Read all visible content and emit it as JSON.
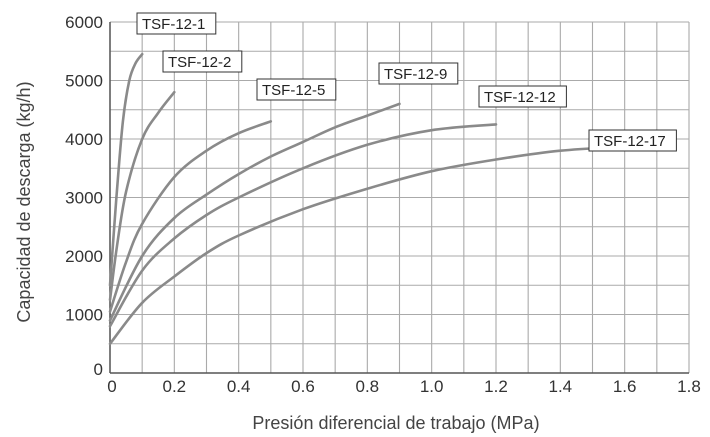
{
  "chart_data": {
    "type": "line",
    "title": "",
    "xlabel": "Presión diferencial de trabajo (MPa)",
    "ylabel": "Capacidad de descarga (kg/h)",
    "xlim": [
      0,
      1.8
    ],
    "ylim": [
      0,
      6000
    ],
    "x_ticks": [
      "0",
      "0.2",
      "0.4",
      "0.6",
      "0.8",
      "1.0",
      "1.2",
      "1.4",
      "1.6",
      "1.8"
    ],
    "y_ticks": [
      "0",
      "1000",
      "2000",
      "3000",
      "4000",
      "5000",
      "6000"
    ],
    "grid": true,
    "line_color": "#8a8a8a",
    "grid_color": "#aaaaaa",
    "series": [
      {
        "name": "TSF-12-1",
        "x": [
          0,
          0.02,
          0.04,
          0.06,
          0.08,
          0.1
        ],
        "y": [
          1500,
          3000,
          4300,
          5000,
          5300,
          5450
        ]
      },
      {
        "name": "TSF-12-2",
        "x": [
          0,
          0.02,
          0.05,
          0.1,
          0.15,
          0.2
        ],
        "y": [
          1250,
          2100,
          3100,
          4000,
          4450,
          4800
        ]
      },
      {
        "name": "TSF-12-5",
        "x": [
          0,
          0.05,
          0.1,
          0.2,
          0.3,
          0.4,
          0.5
        ],
        "y": [
          1050,
          1900,
          2550,
          3350,
          3800,
          4100,
          4300
        ]
      },
      {
        "name": "TSF-12-9",
        "x": [
          0,
          0.1,
          0.2,
          0.3,
          0.4,
          0.5,
          0.6,
          0.7,
          0.8,
          0.9
        ],
        "y": [
          900,
          2000,
          2650,
          3050,
          3400,
          3700,
          3950,
          4200,
          4400,
          4600
        ]
      },
      {
        "name": "TSF-12-12",
        "x": [
          0,
          0.1,
          0.2,
          0.3,
          0.4,
          0.6,
          0.8,
          1.0,
          1.2
        ],
        "y": [
          800,
          1750,
          2300,
          2700,
          3000,
          3500,
          3900,
          4150,
          4250
        ]
      },
      {
        "name": "TSF-12-17",
        "x": [
          0,
          0.1,
          0.2,
          0.3,
          0.4,
          0.6,
          0.8,
          1.0,
          1.2,
          1.4,
          1.6,
          1.7
        ],
        "y": [
          500,
          1200,
          1650,
          2050,
          2350,
          2800,
          3150,
          3450,
          3650,
          3800,
          3870,
          3900
        ]
      }
    ]
  }
}
